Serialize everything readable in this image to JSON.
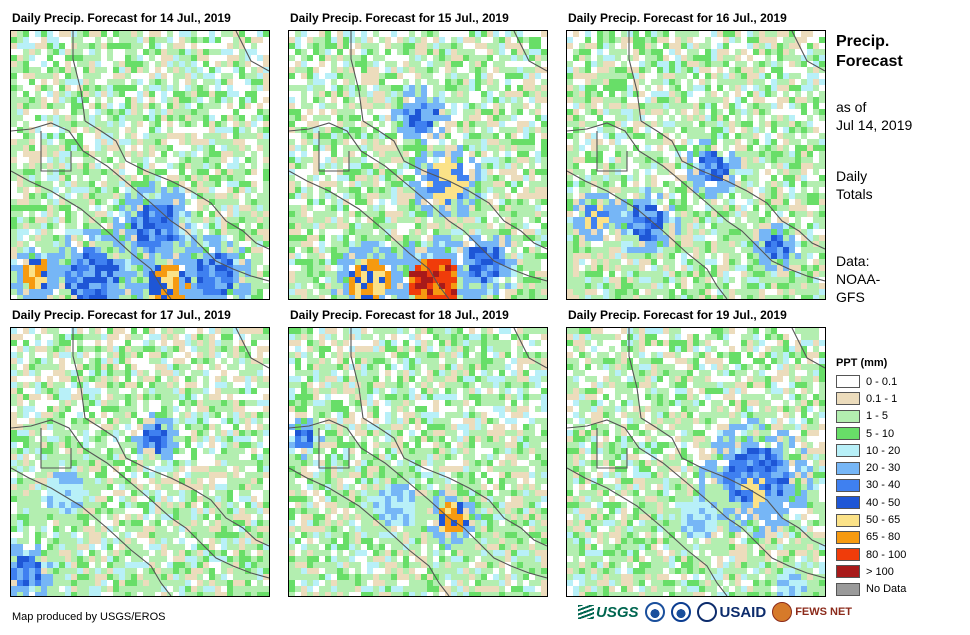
{
  "panels": [
    {
      "title": "Daily Precip. Forecast for 14 Jul., 2019",
      "seed": 14,
      "hot": [
        [
          0.55,
          0.72,
          "b",
          0.09
        ],
        [
          0.1,
          0.9,
          "o",
          0.06
        ],
        [
          0.6,
          0.94,
          "o",
          0.08
        ],
        [
          0.3,
          0.9,
          "b",
          0.1
        ],
        [
          0.78,
          0.9,
          "b",
          0.08
        ]
      ]
    },
    {
      "title": "Daily Precip. Forecast for 15 Jul., 2019",
      "seed": 15,
      "hot": [
        [
          0.6,
          0.55,
          "y",
          0.08
        ],
        [
          0.5,
          0.3,
          "b",
          0.06
        ],
        [
          0.55,
          0.93,
          "r",
          0.1
        ],
        [
          0.3,
          0.92,
          "o",
          0.08
        ],
        [
          0.75,
          0.85,
          "b",
          0.07
        ]
      ]
    },
    {
      "title": "Daily Precip. Forecast for 16 Jul., 2019",
      "seed": 16,
      "hot": [
        [
          0.1,
          0.68,
          "y",
          0.05
        ],
        [
          0.55,
          0.5,
          "b",
          0.06
        ],
        [
          0.3,
          0.7,
          "b",
          0.07
        ],
        [
          0.8,
          0.8,
          "b",
          0.05
        ]
      ]
    },
    {
      "title": "Daily Precip. Forecast for 17 Jul., 2019",
      "seed": 17,
      "hot": [
        [
          0.55,
          0.4,
          "b",
          0.05
        ],
        [
          0.05,
          0.9,
          "b",
          0.06
        ],
        [
          0.2,
          0.6,
          "c",
          0.08
        ]
      ]
    },
    {
      "title": "Daily Precip. Forecast for 18 Jul., 2019",
      "seed": 18,
      "hot": [
        [
          0.62,
          0.7,
          "o",
          0.06
        ],
        [
          0.05,
          0.4,
          "b",
          0.04
        ],
        [
          0.4,
          0.65,
          "c",
          0.08
        ]
      ]
    },
    {
      "title": "Daily Precip. Forecast for 19 Jul., 2019",
      "seed": 19,
      "hot": [
        [
          0.72,
          0.55,
          "b",
          0.12
        ],
        [
          0.72,
          0.6,
          "y",
          0.05
        ],
        [
          0.5,
          0.7,
          "c",
          0.08
        ],
        [
          0.85,
          0.95,
          "c",
          0.06
        ]
      ]
    }
  ],
  "sidebar": {
    "title_line1": "Precip.",
    "title_line2": "Forecast",
    "asof_line1": "as of",
    "asof_line2": "Jul 14, 2019",
    "daily_line1": "Daily",
    "daily_line2": "Totals",
    "data_line1": "Data:",
    "data_line2": "NOAA-",
    "data_line3": "GFS"
  },
  "legend": {
    "title": "PPT (mm)",
    "items": [
      {
        "label": "0 - 0.1",
        "color": "#ffffff"
      },
      {
        "label": "0.1 - 1",
        "color": "#ecdcbc"
      },
      {
        "label": "1 - 5",
        "color": "#b3eeb0"
      },
      {
        "label": "5 - 10",
        "color": "#68de68"
      },
      {
        "label": "10 - 20",
        "color": "#b8f0f8"
      },
      {
        "label": "20 - 30",
        "color": "#76b6f6"
      },
      {
        "label": "30 - 40",
        "color": "#3f80f0"
      },
      {
        "label": "40 - 50",
        "color": "#1e56d6"
      },
      {
        "label": "50 - 65",
        "color": "#fbe288"
      },
      {
        "label": "65 - 80",
        "color": "#f69a10"
      },
      {
        "label": "80 - 100",
        "color": "#f03c0a"
      },
      {
        "label": "> 100",
        "color": "#a81a1a"
      },
      {
        "label": "No Data",
        "color": "#9a9a9a"
      }
    ]
  },
  "credit": "Map produced by USGS/EROS",
  "logos": {
    "usgs": "USGS",
    "usaid": "USAID",
    "fews": "FEWS NET"
  }
}
